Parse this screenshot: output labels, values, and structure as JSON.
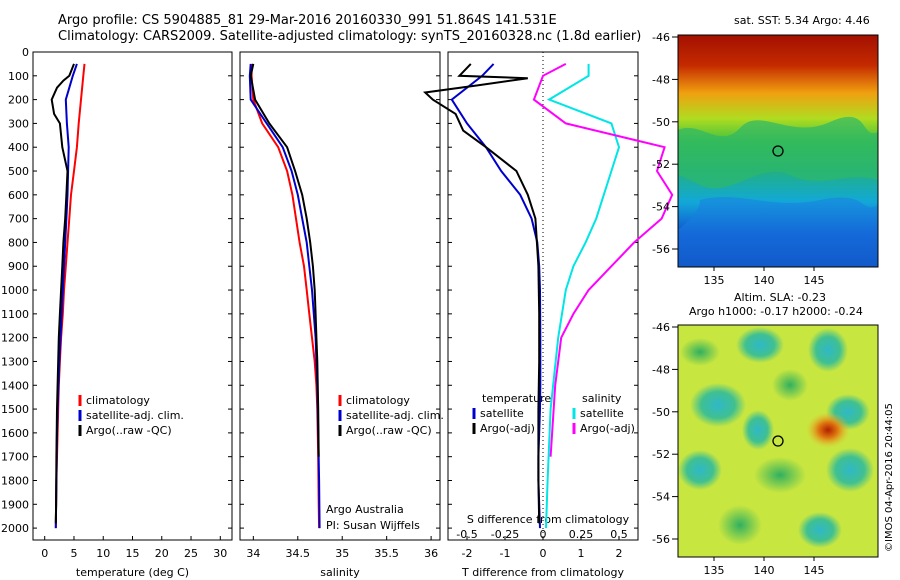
{
  "title_line1": "Argo profile: CS 5904885_81 29-Mar-2016 20160330_991 51.864S 141.531E",
  "title_line2": "Climatology: CARS2009. Satellite-adjusted climatology: synTS_20160328.nc (1.8d earlier)",
  "stamp": "©IMOS 04-Apr-2016 20:44:05",
  "colors": {
    "climatology": "#ff0000",
    "satellite": "#0000cc",
    "argo": "#000000",
    "satellite_salinity": "#00e5e5",
    "argo_salinity_diff": "#ff00ff"
  },
  "panels": {
    "temperature": {
      "xlabel": "temperature (deg C)",
      "x_ticks": [
        "0",
        "5",
        "10",
        "15",
        "20",
        "25",
        "30"
      ],
      "legend": [
        "climatology",
        "satellite-adj. clim.",
        "Argo(..raw -QC)"
      ]
    },
    "salinity": {
      "xlabel": "salinity",
      "x_ticks": [
        "34",
        "34.5",
        "35",
        "35.5",
        "36"
      ],
      "legend": [
        "climatology",
        "satellite-adj. clim.",
        "Argo(..raw -QC)"
      ],
      "note1": "Argo Australia",
      "note2": "PI: Susan Wijffels"
    },
    "difference": {
      "xlabel": "T difference from climatology",
      "top_label": "S difference from climatology",
      "x_ticks": [
        "-2",
        "-1",
        "0",
        "1",
        "2"
      ],
      "s_ticks": [
        "-0.5",
        "-0.25",
        "0",
        "0.25",
        "0.5"
      ],
      "legend_t_title": "temperature",
      "legend_s_title": "salinity",
      "legend_t": [
        "satellite",
        "Argo(-adj)"
      ],
      "legend_s": [
        "satellite",
        "Argo(-adj)"
      ]
    },
    "depth_ticks": [
      "0",
      "100",
      "200",
      "300",
      "400",
      "500",
      "600",
      "700",
      "800",
      "900",
      "1000",
      "1100",
      "1200",
      "1300",
      "1400",
      "1500",
      "1600",
      "1700",
      "1800",
      "1900",
      "2000"
    ],
    "sst_map": {
      "title": "sat. SST: 5.34  Argo: 4.46",
      "y_ticks": [
        "-46",
        "-48",
        "-50",
        "-52",
        "-54",
        "-56"
      ],
      "x_ticks": [
        "135",
        "140",
        "145"
      ]
    },
    "sla_map": {
      "title1": "Altim. SLA: -0.23",
      "title2": "Argo h1000: -0.17 h2000: -0.24",
      "y_ticks": [
        "-46",
        "-48",
        "-50",
        "-52",
        "-54",
        "-56"
      ],
      "x_ticks": [
        "135",
        "140",
        "145"
      ]
    }
  },
  "chart_data": [
    {
      "type": "line",
      "title": "",
      "xlabel": "temperature (deg C)",
      "ylabel": "",
      "xlim": [
        -2,
        32
      ],
      "ylim": [
        2050,
        0
      ],
      "series": [
        {
          "name": "climatology",
          "x": [
            6.8,
            6.6,
            6.2,
            5.8,
            5.5,
            5.0,
            4.5,
            4.2,
            3.9,
            3.6,
            3.3,
            3.1,
            2.8,
            2.6,
            2.4,
            2.3,
            2.2,
            2.1,
            2.0,
            1.95,
            1.9
          ],
          "y": [
            50,
            100,
            200,
            300,
            400,
            500,
            600,
            700,
            800,
            900,
            1000,
            1100,
            1200,
            1300,
            1400,
            1500,
            1600,
            1700,
            1800,
            1900,
            2000
          ]
        },
        {
          "name": "satellite-adj. clim.",
          "x": [
            5.5,
            4.8,
            3.6,
            3.8,
            4.1,
            4.0,
            3.9,
            3.7,
            3.5,
            3.3,
            3.1,
            2.9,
            2.7,
            2.5,
            2.35,
            2.2,
            2.1,
            2.05,
            2.0,
            1.95,
            1.9
          ],
          "y": [
            50,
            100,
            200,
            300,
            400,
            500,
            600,
            700,
            800,
            900,
            1000,
            1100,
            1200,
            1300,
            1400,
            1500,
            1600,
            1700,
            1800,
            1900,
            2000
          ]
        },
        {
          "name": "Argo(..raw -QC)",
          "x": [
            5.0,
            4.2,
            3.2,
            2.1,
            1.2,
            1.6,
            2.6,
            3.0,
            3.9,
            3.7,
            3.5,
            3.2,
            3.0,
            2.8,
            2.6,
            2.4,
            2.3,
            2.2,
            2.1,
            2.0,
            1.95,
            1.9
          ],
          "y": [
            50,
            100,
            120,
            150,
            200,
            260,
            300,
            400,
            500,
            600,
            700,
            800,
            900,
            1000,
            1100,
            1200,
            1300,
            1400,
            1500,
            1700,
            1900,
            1980
          ]
        }
      ]
    },
    {
      "type": "line",
      "title": "",
      "xlabel": "salinity",
      "ylabel": "",
      "xlim": [
        33.85,
        36.1
      ],
      "ylim": [
        2050,
        0
      ],
      "series": [
        {
          "name": "climatology",
          "x": [
            33.98,
            33.98,
            34.0,
            34.1,
            34.28,
            34.38,
            34.44,
            34.48,
            34.52,
            34.57,
            34.6,
            34.63,
            34.66,
            34.69,
            34.71,
            34.72,
            34.73,
            34.735,
            34.74
          ],
          "y": [
            50,
            100,
            200,
            300,
            400,
            500,
            600,
            700,
            800,
            900,
            1000,
            1100,
            1200,
            1300,
            1400,
            1500,
            1700,
            1900,
            2000
          ]
        },
        {
          "name": "satellite-adj. clim.",
          "x": [
            33.97,
            33.96,
            33.97,
            34.15,
            34.33,
            34.43,
            34.5,
            34.55,
            34.6,
            34.63,
            34.66,
            34.68,
            34.7,
            34.71,
            34.72,
            34.73,
            34.74,
            34.745
          ],
          "y": [
            50,
            100,
            200,
            300,
            400,
            500,
            600,
            700,
            800,
            900,
            1000,
            1100,
            1200,
            1300,
            1400,
            1600,
            1800,
            2000
          ]
        },
        {
          "name": "Argo(..raw -QC)",
          "x": [
            34.0,
            33.97,
            34.02,
            34.18,
            34.38,
            34.47,
            34.55,
            34.6,
            34.64,
            34.67,
            34.69,
            34.7,
            34.71,
            34.72,
            34.73,
            34.735
          ],
          "y": [
            50,
            100,
            200,
            300,
            400,
            500,
            600,
            700,
            800,
            900,
            1000,
            1100,
            1200,
            1300,
            1500,
            1700
          ]
        }
      ]
    },
    {
      "type": "line",
      "title": "",
      "xlabel": "T difference from climatology",
      "ylabel": "",
      "xlim": [
        -2.5,
        2.5
      ],
      "ylim": [
        2050,
        0
      ],
      "series": [
        {
          "name": "temperature satellite",
          "x": [
            -1.3,
            -1.6,
            -2.4,
            -2.0,
            -1.5,
            -1.1,
            -0.6,
            -0.3,
            -0.15,
            -0.1,
            -0.08,
            -0.07,
            -0.07,
            -0.08,
            -0.1,
            -0.12,
            -0.12,
            -0.1,
            -0.08
          ],
          "y": [
            50,
            100,
            200,
            300,
            400,
            500,
            600,
            700,
            800,
            900,
            1000,
            1200,
            1400,
            1500,
            1600,
            1700,
            1800,
            1900,
            2000
          ]
        },
        {
          "name": "temperature Argo(-adj)",
          "x": [
            -1.9,
            -2.2,
            -0.4,
            -1.7,
            -3.1,
            -2.9,
            -2.3,
            -2.1,
            -1.5,
            -0.7,
            -0.4,
            -0.2,
            -0.12,
            -0.1,
            -0.1,
            -0.12,
            -0.12,
            -0.1
          ],
          "y": [
            50,
            100,
            110,
            140,
            170,
            200,
            260,
            330,
            400,
            500,
            600,
            700,
            900,
            1100,
            1300,
            1500,
            1800,
            1980
          ]
        },
        {
          "name": "salinity satellite",
          "x": [
            0.3,
            0.3,
            0.04,
            0.45,
            0.5,
            0.45,
            0.4,
            0.35,
            0.28,
            0.2,
            0.15,
            0.1,
            0.05,
            0.03,
            0.02
          ],
          "y": [
            50,
            100,
            200,
            300,
            400,
            500,
            600,
            700,
            800,
            900,
            1000,
            1200,
            1500,
            1800,
            2000
          ]
        },
        {
          "name": "salinity Argo(-adj)",
          "x": [
            0.15,
            0.0,
            -0.06,
            0.15,
            0.8,
            0.75,
            0.85,
            0.78,
            0.6,
            0.45,
            0.3,
            0.2,
            0.12,
            0.08,
            0.05
          ],
          "y": [
            50,
            100,
            200,
            300,
            400,
            500,
            600,
            700,
            800,
            900,
            1000,
            1100,
            1200,
            1400,
            1700
          ]
        }
      ]
    }
  ]
}
